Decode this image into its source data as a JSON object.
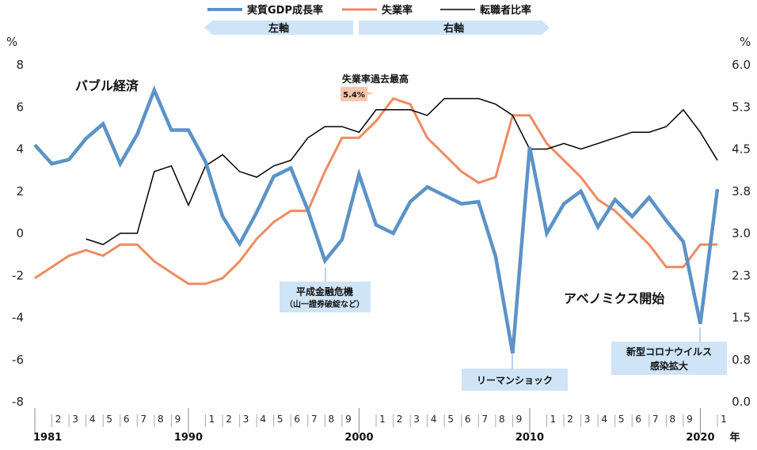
{
  "chart_data": {
    "type": "line",
    "legend": [
      "実質GDP成長率",
      "失業率",
      "転職者比率"
    ],
    "axis_tags": {
      "left": "左軸",
      "right": "右軸"
    },
    "left_axis": {
      "unit": "%",
      "ticks": [
        "8",
        "6",
        "4",
        "2",
        "0",
        "-2",
        "-4",
        "-6",
        "-8"
      ],
      "ylim": [
        -8,
        8
      ]
    },
    "right_axis": {
      "unit": "%",
      "ticks": [
        "6.0",
        "5.3",
        "4.5",
        "3.8",
        "3.0",
        "2.3",
        "1.5",
        "0.8",
        "0.0"
      ],
      "ylim": [
        0,
        6
      ]
    },
    "x_axis": {
      "year_suffix": "年",
      "decades": [
        {
          "year": 1981,
          "label": "1981"
        },
        {
          "year": 1990,
          "label": "1990"
        },
        {
          "year": 2000,
          "label": "2000"
        },
        {
          "year": 2010,
          "label": "2010"
        },
        {
          "year": 2020,
          "label": "2020"
        }
      ],
      "ticks": [
        {
          "year": 1982,
          "label": "2"
        },
        {
          "year": 1983,
          "label": "3"
        },
        {
          "year": 1984,
          "label": "4"
        },
        {
          "year": 1985,
          "label": "5"
        },
        {
          "year": 1986,
          "label": "6"
        },
        {
          "year": 1987,
          "label": "7"
        },
        {
          "year": 1988,
          "label": "8"
        },
        {
          "year": 1989,
          "label": "9"
        },
        {
          "year": 1991,
          "label": "1"
        },
        {
          "year": 1992,
          "label": "2"
        },
        {
          "year": 1993,
          "label": "3"
        },
        {
          "year": 1994,
          "label": "4"
        },
        {
          "year": 1995,
          "label": "5"
        },
        {
          "year": 1996,
          "label": "6"
        },
        {
          "year": 1997,
          "label": "7"
        },
        {
          "year": 1998,
          "label": "8"
        },
        {
          "year": 1999,
          "label": "9"
        },
        {
          "year": 2001,
          "label": "1"
        },
        {
          "year": 2002,
          "label": "2"
        },
        {
          "year": 2003,
          "label": "3"
        },
        {
          "year": 2004,
          "label": "4"
        },
        {
          "year": 2005,
          "label": "5"
        },
        {
          "year": 2006,
          "label": "6"
        },
        {
          "year": 2007,
          "label": "7"
        },
        {
          "year": 2008,
          "label": "8"
        },
        {
          "year": 2009,
          "label": "9"
        },
        {
          "year": 2011,
          "label": "1"
        },
        {
          "year": 2012,
          "label": "2"
        },
        {
          "year": 2013,
          "label": "3"
        },
        {
          "year": 2014,
          "label": "4"
        },
        {
          "year": 2015,
          "label": "5"
        },
        {
          "year": 2016,
          "label": "6"
        },
        {
          "year": 2017,
          "label": "7"
        },
        {
          "year": 2018,
          "label": "8"
        },
        {
          "year": 2019,
          "label": "9"
        },
        {
          "year": 2021,
          "label": "1"
        }
      ]
    },
    "series": [
      {
        "name": "実質GDP成長率",
        "axis": "left",
        "color": "#5b93c7",
        "x": [
          1981,
          1982,
          1983,
          1984,
          1985,
          1986,
          1987,
          1988,
          1989,
          1990,
          1991,
          1992,
          1993,
          1994,
          1995,
          1996,
          1997,
          1998,
          1999,
          2000,
          2001,
          2002,
          2003,
          2004,
          2005,
          2006,
          2007,
          2008,
          2009,
          2010,
          2011,
          2012,
          2013,
          2014,
          2015,
          2016,
          2017,
          2018,
          2019,
          2020,
          2021
        ],
        "values": [
          4.2,
          3.3,
          3.5,
          4.5,
          5.2,
          3.3,
          4.7,
          6.8,
          4.9,
          4.9,
          3.4,
          0.8,
          -0.5,
          1.0,
          2.7,
          3.1,
          1.1,
          -1.3,
          -0.3,
          2.8,
          0.4,
          0.0,
          1.5,
          2.2,
          1.8,
          1.4,
          1.5,
          -1.1,
          -5.7,
          4.1,
          0.0,
          1.4,
          2.0,
          0.3,
          1.6,
          0.8,
          1.7,
          0.6,
          -0.4,
          -4.3,
          2.1
        ]
      },
      {
        "name": "失業率",
        "axis": "right",
        "color": "#ef8a62",
        "x": [
          1981,
          1982,
          1983,
          1984,
          1985,
          1986,
          1987,
          1988,
          1989,
          1990,
          1991,
          1992,
          1993,
          1994,
          1995,
          1996,
          1997,
          1998,
          1999,
          2000,
          2001,
          2002,
          2003,
          2004,
          2005,
          2006,
          2007,
          2008,
          2009,
          2010,
          2011,
          2012,
          2013,
          2014,
          2015,
          2016,
          2017,
          2018,
          2019,
          2020,
          2021
        ],
        "values": [
          2.2,
          2.4,
          2.6,
          2.7,
          2.6,
          2.8,
          2.8,
          2.5,
          2.3,
          2.1,
          2.1,
          2.2,
          2.5,
          2.9,
          3.2,
          3.4,
          3.4,
          4.1,
          4.7,
          4.7,
          5.0,
          5.4,
          5.3,
          4.7,
          4.4,
          4.1,
          3.9,
          4.0,
          5.1,
          5.1,
          4.6,
          4.3,
          4.0,
          3.6,
          3.4,
          3.1,
          2.8,
          2.4,
          2.4,
          2.8,
          2.8
        ]
      },
      {
        "name": "転職者比率",
        "axis": "right",
        "color": "#000000",
        "x": [
          1984,
          1985,
          1986,
          1987,
          1988,
          1989,
          1990,
          1991,
          1992,
          1993,
          1994,
          1995,
          1996,
          1997,
          1998,
          1999,
          2000,
          2001,
          2002,
          2003,
          2004,
          2005,
          2006,
          2007,
          2008,
          2009,
          2010,
          2011,
          2012,
          2013,
          2014,
          2015,
          2016,
          2017,
          2018,
          2019,
          2020,
          2021
        ],
        "values": [
          2.9,
          2.8,
          3.0,
          3.0,
          4.1,
          4.2,
          3.5,
          4.2,
          4.4,
          4.1,
          4.0,
          4.2,
          4.3,
          4.7,
          4.9,
          4.9,
          4.8,
          5.2,
          5.2,
          5.2,
          5.1,
          5.4,
          5.4,
          5.4,
          5.3,
          5.1,
          4.5,
          4.5,
          4.6,
          4.5,
          4.6,
          4.7,
          4.8,
          4.8,
          4.9,
          5.2,
          4.8,
          4.3
        ]
      }
    ],
    "annotations": {
      "bubble": "バブル経済",
      "unemployment_peak_title": "失業率過去最高",
      "unemployment_peak_value": "5.4%",
      "heisei_crisis": "平成金融危機",
      "heisei_crisis_sub": "（山一證券破綻など）",
      "abenomics": "アベノミクス開始",
      "lehman": "リーマンショック",
      "covid_line1": "新型コロナウイルス",
      "covid_line2": "感染拡大"
    }
  }
}
